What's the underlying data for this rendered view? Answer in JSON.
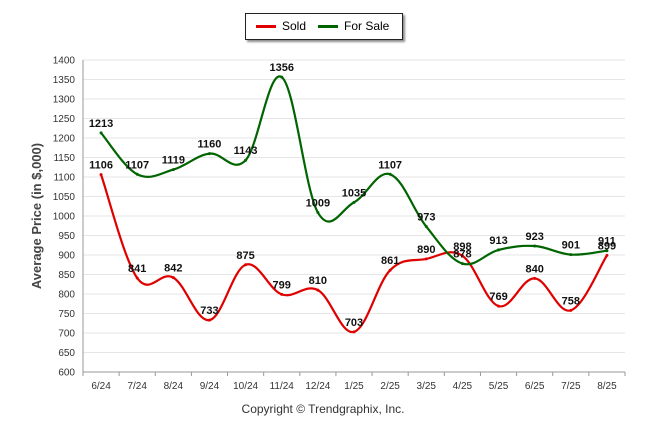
{
  "legend": {
    "sold_label": "Sold",
    "for_sale_label": "For Sale"
  },
  "copyright": "Copyright © Trendgraphix, Inc.",
  "chart_data": {
    "type": "line",
    "title": "",
    "xlabel": "",
    "ylabel": "Average Price (in $,000)",
    "ylim": [
      600,
      1400
    ],
    "yticks": [
      600,
      650,
      700,
      750,
      800,
      850,
      900,
      950,
      1000,
      1050,
      1100,
      1150,
      1200,
      1250,
      1300,
      1350,
      1400
    ],
    "categories": [
      "6/24",
      "7/24",
      "8/24",
      "9/24",
      "10/24",
      "11/24",
      "12/24",
      "1/25",
      "2/25",
      "3/25",
      "4/25",
      "5/25",
      "6/25",
      "7/25",
      "8/25"
    ],
    "grid": true,
    "legend_position": "top-center",
    "series": [
      {
        "name": "Sold",
        "color": "#e00000",
        "values": [
          1106,
          841,
          842,
          733,
          875,
          799,
          810,
          703,
          861,
          890,
          898,
          769,
          840,
          758,
          899
        ]
      },
      {
        "name": "For Sale",
        "color": "#006400",
        "values": [
          1213,
          1107,
          1119,
          1160,
          1143,
          1356,
          1009,
          1035,
          1107,
          973,
          878,
          913,
          923,
          901,
          911
        ]
      }
    ]
  }
}
